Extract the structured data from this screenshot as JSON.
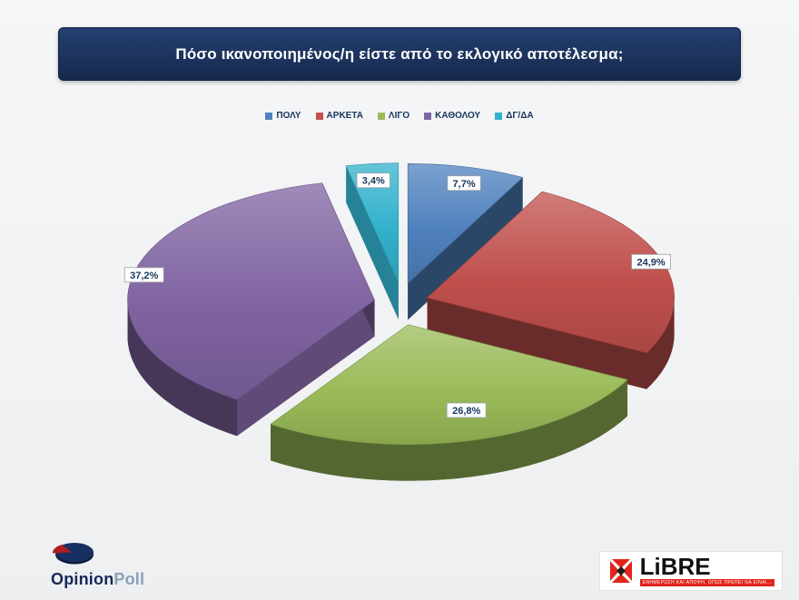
{
  "title": "Πόσο ικανοποιημένος/η είστε από το εκλογικό αποτέλεσμα;",
  "chart_data": {
    "type": "pie",
    "style": "3d-exploded",
    "title": "Πόσο ικανοποιημένος/η είστε από το εκλογικό αποτέλεσμα;",
    "legend_position": "top",
    "unit": "%",
    "slices": [
      {
        "label": "ΠΟΛΥ",
        "value": 7.7,
        "display": "7,7%",
        "color": "#4f81bd"
      },
      {
        "label": "ΑΡΚΕΤΑ",
        "value": 24.9,
        "display": "24,9%",
        "color": "#c0504d"
      },
      {
        "label": "ΛΙΓΟ",
        "value": 26.8,
        "display": "26,8%",
        "color": "#9bbb59"
      },
      {
        "label": "ΚΑΘΟΛΟΥ",
        "value": 37.2,
        "display": "37,2%",
        "color": "#8064a2"
      },
      {
        "label": "ΔΓ/ΔΑ",
        "value": 3.4,
        "display": "3,4%",
        "color": "#33b1cc"
      }
    ]
  },
  "branding": {
    "opinionpoll": {
      "text_primary": "Opinion",
      "text_secondary": "Poll"
    },
    "libre": {
      "wordmark": "LiBRE",
      "tagline": "ΕΝΗΜΕΡΩΣΗ ΚΑΙ ΑΠΟΨΗ, ΟΠΩΣ ΠΡΕΠΕΙ ΝΑ ΕΙΝΑΙ..."
    }
  }
}
